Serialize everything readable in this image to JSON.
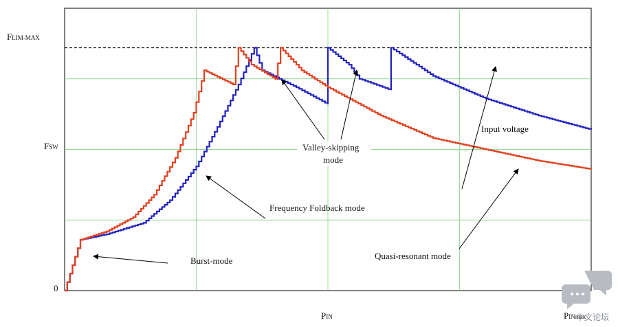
{
  "chart_data": {
    "type": "line",
    "title": "",
    "xlabel": {
      "main": "P",
      "sub": "IN"
    },
    "x_end_label": {
      "main": "P",
      "sub": "INmax"
    },
    "y_labels": [
      {
        "main": "F",
        "sub": "LIM-MAX"
      },
      {
        "main": "F",
        "sub": "SW"
      },
      {
        "main": "0",
        "sub": ""
      }
    ],
    "grid": true,
    "xlim": [
      0,
      1
    ],
    "ylim": [
      0,
      1
    ],
    "limit_level": 0.86,
    "fsw_level": 0.48,
    "series": [
      {
        "color": "#2222c0",
        "points": [
          [
            0,
            0
          ],
          [
            0.03,
            0.18
          ],
          [
            0.08,
            0.2
          ],
          [
            0.15,
            0.24
          ],
          [
            0.2,
            0.32
          ],
          [
            0.25,
            0.44
          ],
          [
            0.29,
            0.58
          ],
          [
            0.33,
            0.73
          ],
          [
            0.36,
            0.86
          ],
          [
            0.375,
            0.78
          ],
          [
            0.44,
            0.72
          ],
          [
            0.5,
            0.66
          ],
          [
            0.5,
            0.86
          ],
          [
            0.54,
            0.8
          ],
          [
            0.56,
            0.75
          ],
          [
            0.62,
            0.71
          ],
          [
            0.62,
            0.86
          ],
          [
            0.7,
            0.76
          ],
          [
            0.8,
            0.68
          ],
          [
            0.9,
            0.62
          ],
          [
            1.0,
            0.57
          ]
        ]
      },
      {
        "color": "#e04020",
        "points": [
          [
            0,
            0
          ],
          [
            0.03,
            0.18
          ],
          [
            0.08,
            0.21
          ],
          [
            0.13,
            0.26
          ],
          [
            0.17,
            0.34
          ],
          [
            0.21,
            0.47
          ],
          [
            0.245,
            0.63
          ],
          [
            0.265,
            0.78
          ],
          [
            0.32,
            0.73
          ],
          [
            0.33,
            0.86
          ],
          [
            0.355,
            0.8
          ],
          [
            0.4,
            0.75
          ],
          [
            0.41,
            0.86
          ],
          [
            0.45,
            0.78
          ],
          [
            0.5,
            0.72
          ],
          [
            0.6,
            0.62
          ],
          [
            0.7,
            0.54
          ],
          [
            0.8,
            0.5
          ],
          [
            0.9,
            0.46
          ],
          [
            1.0,
            0.43
          ]
        ]
      }
    ],
    "annotations": [
      {
        "text": "Valley-skipping",
        "text2": "mode"
      },
      {
        "text": "Frequency Foldback mode"
      },
      {
        "text": "Burst-mode"
      },
      {
        "text": "Quasi-resonant mode"
      },
      {
        "text": "Input voltage"
      }
    ]
  },
  "watermark": "中文论坛"
}
